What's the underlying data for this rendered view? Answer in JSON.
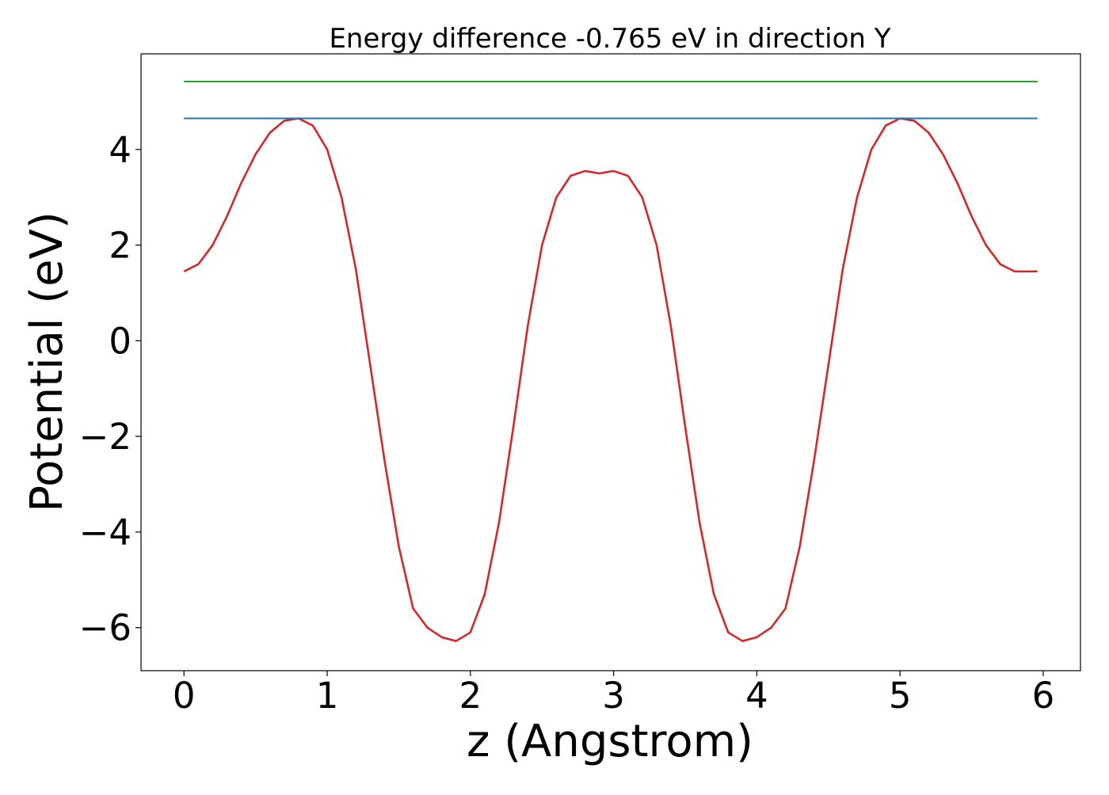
{
  "chart_data": {
    "type": "line",
    "title": "Energy difference -0.765 eV in direction Y",
    "xlabel": "z (Angstrom)",
    "ylabel": "Potential (eV)",
    "xlim": [
      -0.3,
      6.26
    ],
    "ylim": [
      -6.9,
      6.0
    ],
    "xticks": [
      0,
      1,
      2,
      3,
      4,
      5,
      6
    ],
    "xtick_labels": [
      "0",
      "1",
      "2",
      "3",
      "4",
      "5",
      "6"
    ],
    "yticks": [
      -6,
      -4,
      -2,
      0,
      2,
      4
    ],
    "ytick_labels": [
      "−6",
      "−4",
      "−2",
      "0",
      "2",
      "4"
    ],
    "grid": false,
    "legend": "none",
    "series": [
      {
        "color": "#d62728",
        "x": [
          0.0,
          0.1,
          0.2,
          0.3,
          0.4,
          0.5,
          0.6,
          0.7,
          0.8,
          0.9,
          1.0,
          1.1,
          1.2,
          1.3,
          1.4,
          1.5,
          1.6,
          1.7,
          1.8,
          1.9,
          2.0,
          2.1,
          2.2,
          2.3,
          2.4,
          2.5,
          2.6,
          2.7,
          2.8,
          2.9,
          3.0,
          3.1,
          3.2,
          3.3,
          3.4,
          3.5,
          3.6,
          3.7,
          3.8,
          3.9,
          4.0,
          4.1,
          4.2,
          4.3,
          4.4,
          4.5,
          4.6,
          4.7,
          4.8,
          4.9,
          5.0,
          5.1,
          5.2,
          5.3,
          5.4,
          5.5,
          5.6,
          5.7,
          5.8,
          5.9,
          5.96
        ],
        "y": [
          1.45,
          1.6,
          2.0,
          2.6,
          3.3,
          3.9,
          4.35,
          4.6,
          4.65,
          4.5,
          4.0,
          3.0,
          1.5,
          -0.5,
          -2.5,
          -4.3,
          -5.6,
          -6.0,
          -6.2,
          -6.28,
          -6.1,
          -5.3,
          -3.8,
          -1.8,
          0.3,
          2.0,
          3.0,
          3.45,
          3.55,
          3.5,
          3.55,
          3.45,
          3.0,
          2.0,
          0.3,
          -1.8,
          -3.8,
          -5.3,
          -6.1,
          -6.28,
          -6.2,
          -6.0,
          -5.6,
          -4.3,
          -2.5,
          -0.5,
          1.5,
          3.0,
          4.0,
          4.5,
          4.65,
          4.6,
          4.35,
          3.9,
          3.3,
          2.6,
          2.0,
          1.6,
          1.45,
          1.45,
          1.45
        ]
      },
      {
        "color": "#1f77b4",
        "x": [
          0.0,
          5.96
        ],
        "y": [
          4.65,
          4.65
        ]
      },
      {
        "color": "#2ca02c",
        "x": [
          0.0,
          5.96
        ],
        "y": [
          5.42,
          5.42
        ]
      }
    ]
  }
}
